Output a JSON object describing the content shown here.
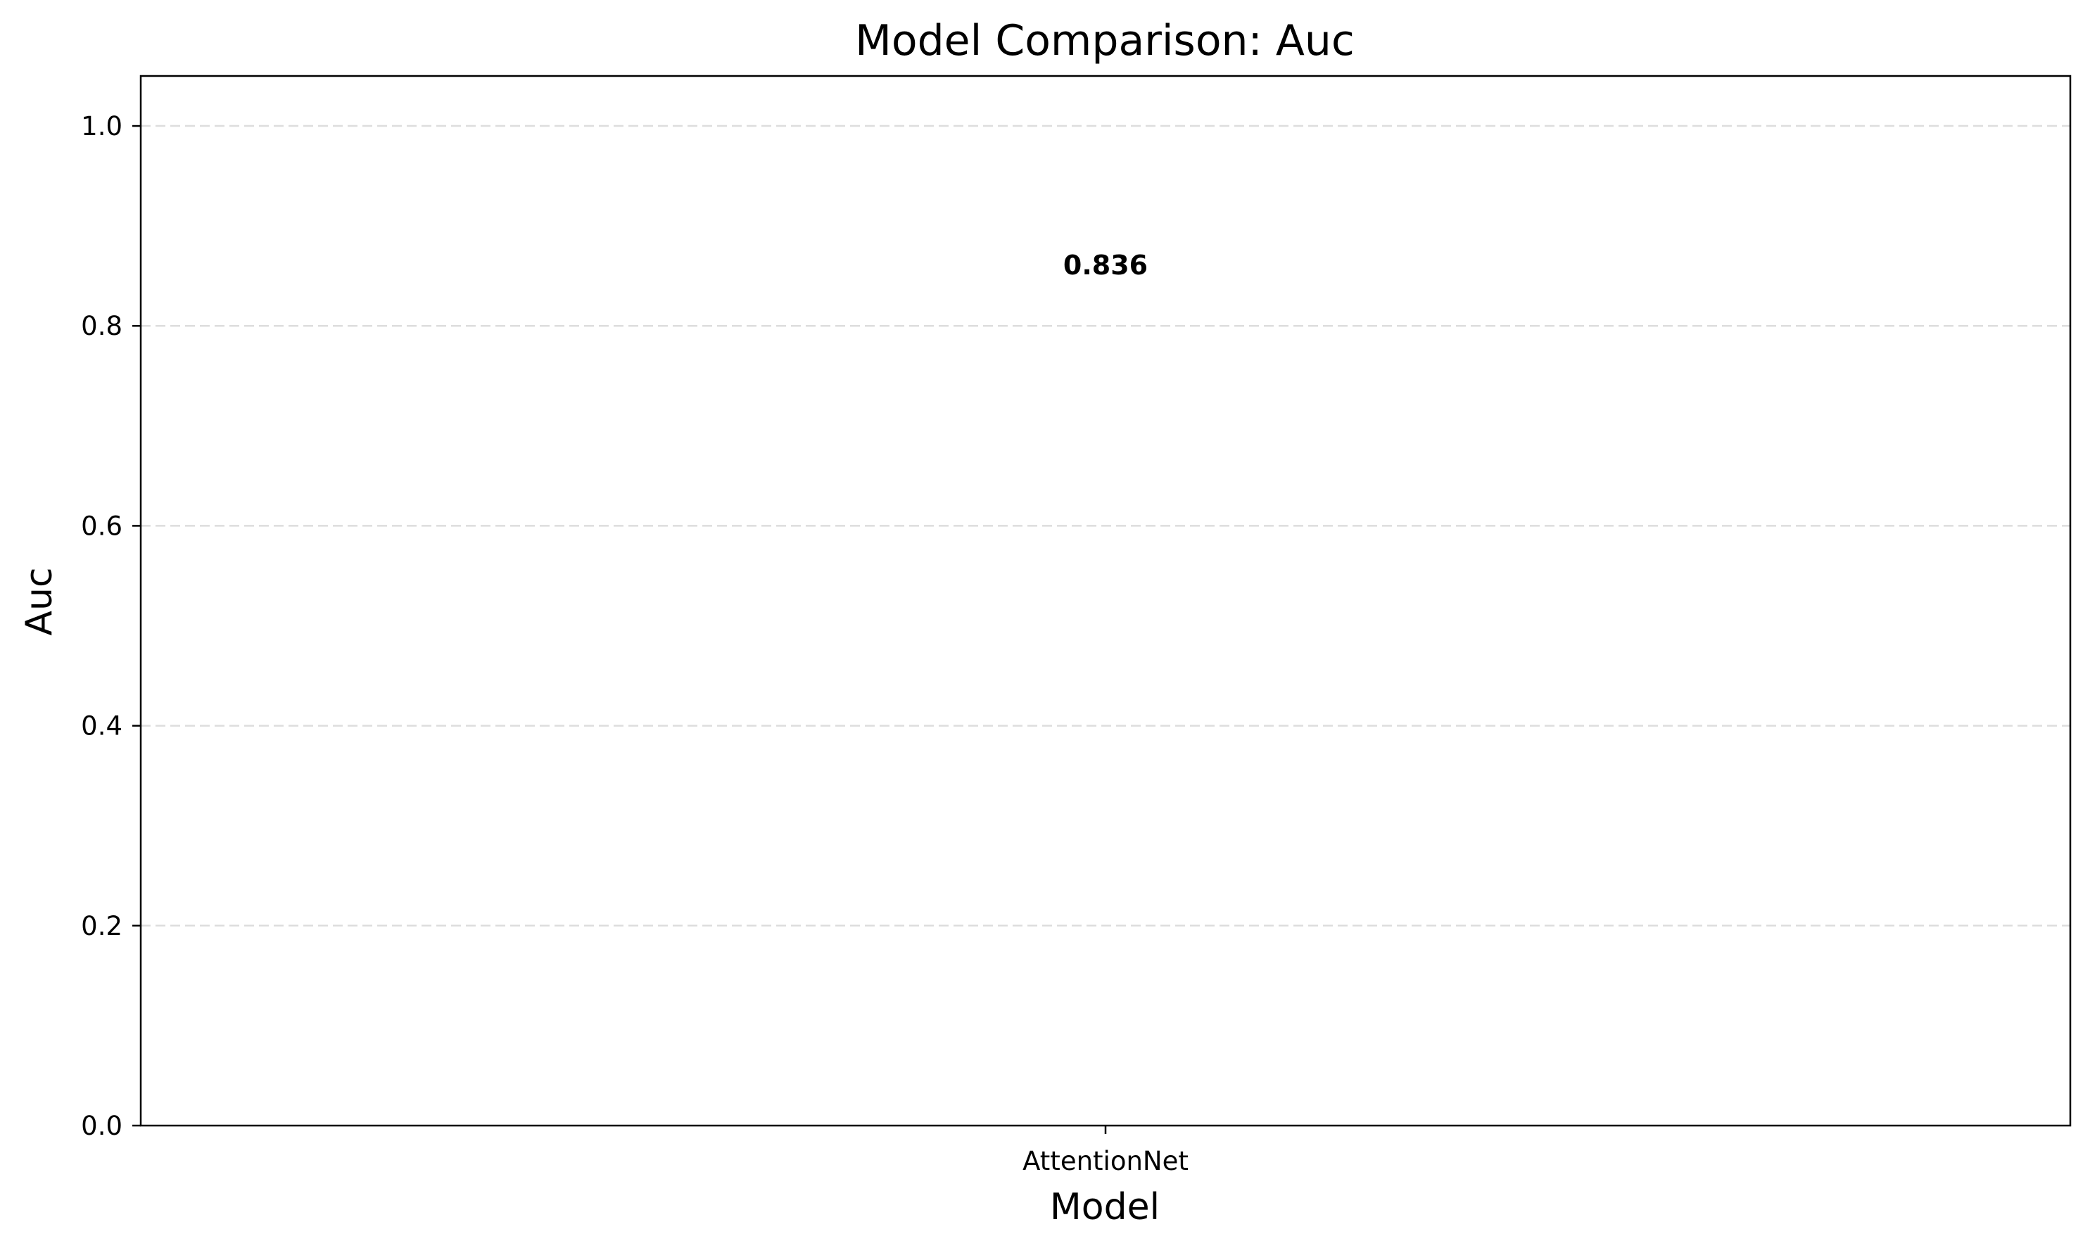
{
  "chart_data": {
    "type": "bar",
    "title": "Model Comparison: Auc",
    "xlabel": "Model",
    "ylabel": "Auc",
    "categories": [
      "AttentionNet"
    ],
    "values": [
      0.836
    ],
    "value_labels": [
      "0.836"
    ],
    "ylim": [
      0,
      1.05
    ],
    "yticks": [
      0.0,
      0.2,
      0.4,
      0.6,
      0.8,
      1.0
    ],
    "ytick_labels": [
      "0.0",
      "0.2",
      "0.4",
      "0.6",
      "0.8",
      "1.0"
    ],
    "grid": "y",
    "legend": "none",
    "colors": {
      "grid": "#dddddd",
      "axes": "#000000",
      "background": "#ffffff"
    }
  }
}
